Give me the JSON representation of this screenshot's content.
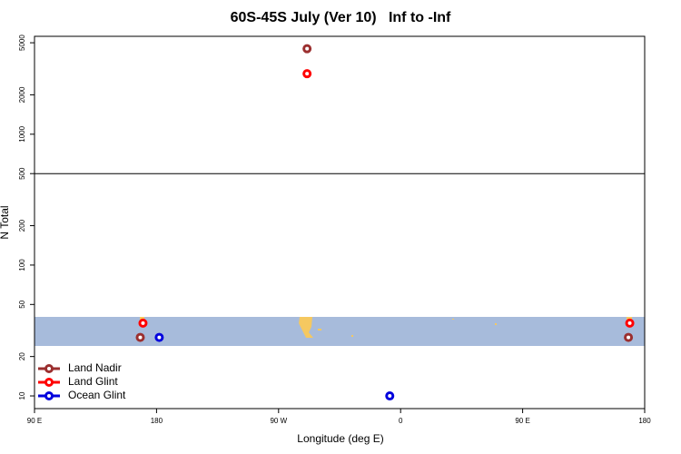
{
  "chart_data": {
    "type": "scatter",
    "title": "60S-45S July (Ver 10)   Inf to -Inf",
    "x_label": "Longitude (deg E)",
    "y_label": "N Total",
    "log_y": true,
    "legend": "bottom-left",
    "xlim": [
      90,
      540
    ],
    "xticks": [
      {
        "value": 90,
        "label": "90 E"
      },
      180,
      {
        "value": 270,
        "label": "90 W"
      },
      {
        "value": 360,
        "label": "0"
      },
      {
        "value": 450,
        "label": "90 E"
      },
      {
        "value": 540,
        "label": "180"
      }
    ],
    "ylim": [
      8,
      5600
    ],
    "yticks": [
      10,
      20,
      50,
      100,
      200,
      500,
      1000,
      2000,
      5000
    ],
    "hline": 500,
    "series": [
      {
        "name": "Land Nadir",
        "color": "#9b2f2f",
        "x": [
          291,
          168,
          528
        ],
        "values": [
          4500,
          28,
          28
        ]
      },
      {
        "name": "Land Glint",
        "color": "#ff0000",
        "x": [
          291,
          170,
          529
        ],
        "values": [
          2900,
          36,
          36
        ]
      },
      {
        "name": "Ocean Glint",
        "color": "#0000dd",
        "x": [
          182,
          352
        ],
        "values": [
          28,
          10
        ]
      }
    ]
  }
}
